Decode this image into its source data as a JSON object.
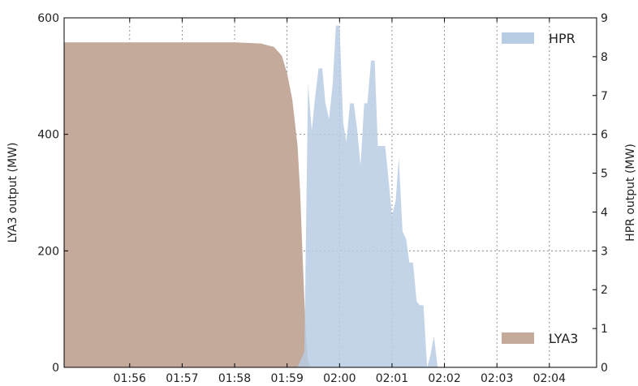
{
  "chart_data": {
    "type": "area",
    "xlabel": "",
    "ylabel_left": "LYA3 output (MW)",
    "ylabel_right": "HPR output (MW)",
    "ylim_left": [
      0,
      600
    ],
    "ylim_right": [
      0,
      9
    ],
    "yticks_left": [
      0,
      200,
      400,
      600
    ],
    "yticks_right": [
      0,
      1,
      2,
      3,
      4,
      5,
      6,
      7,
      8,
      9
    ],
    "xlim_min": [
      114.75,
      124.9
    ],
    "xticks": [
      {
        "min": 116,
        "label": "01:56"
      },
      {
        "min": 117,
        "label": "01:57"
      },
      {
        "min": 118,
        "label": "01:58"
      },
      {
        "min": 119,
        "label": "01:59"
      },
      {
        "min": 120,
        "label": "02:00"
      },
      {
        "min": 121,
        "label": "02:01"
      },
      {
        "min": 122,
        "label": "02:02"
      },
      {
        "min": 123,
        "label": "02:03"
      },
      {
        "min": 124,
        "label": "02:04"
      }
    ],
    "grid": true,
    "series": [
      {
        "name": "LYA3",
        "axis": "left",
        "color": "#c4aa9b",
        "legend_position": "lower-right",
        "x": [
          114.75,
          115.5,
          116.0,
          116.5,
          117.0,
          117.5,
          118.0,
          118.5,
          118.75,
          118.9,
          119.0,
          119.1,
          119.2,
          119.25,
          119.3,
          119.35,
          119.4,
          119.45
        ],
        "values": [
          558,
          558,
          558,
          558,
          558,
          558,
          558,
          556,
          550,
          535,
          505,
          460,
          380,
          300,
          180,
          70,
          10,
          0
        ]
      },
      {
        "name": "HPR",
        "axis": "right",
        "color": "#b8cce4",
        "legend_position": "upper-right",
        "x": [
          119.2,
          119.33,
          119.4,
          119.47,
          119.53,
          119.6,
          119.67,
          119.73,
          119.8,
          119.87,
          119.93,
          120.0,
          120.07,
          120.13,
          120.2,
          120.27,
          120.33,
          120.4,
          120.47,
          120.53,
          120.6,
          120.67,
          120.73,
          120.8,
          120.87,
          120.93,
          121.0,
          121.07,
          121.13,
          121.2,
          121.27,
          121.33,
          121.4,
          121.47,
          121.53,
          121.6,
          121.67,
          121.73,
          121.8,
          121.87,
          121.93,
          122.0,
          122.07,
          122.13,
          122.2,
          122.27,
          122.33,
          122.4,
          122.47
        ],
        "values": [
          0,
          0.4,
          7.3,
          6.1,
          6.9,
          7.7,
          7.7,
          6.8,
          6.4,
          7.3,
          8.8,
          8.8,
          6.3,
          5.8,
          6.8,
          6.8,
          6.2,
          5.2,
          6.8,
          6.8,
          7.9,
          7.9,
          5.7,
          5.7,
          5.7,
          4.9,
          3.9,
          4.3,
          5.4,
          3.5,
          3.3,
          2.7,
          2.7,
          1.7,
          1.6,
          1.6,
          0,
          0.3,
          0.8,
          0,
          0,
          0,
          0,
          0,
          0,
          0,
          0,
          0,
          0
        ]
      }
    ]
  }
}
